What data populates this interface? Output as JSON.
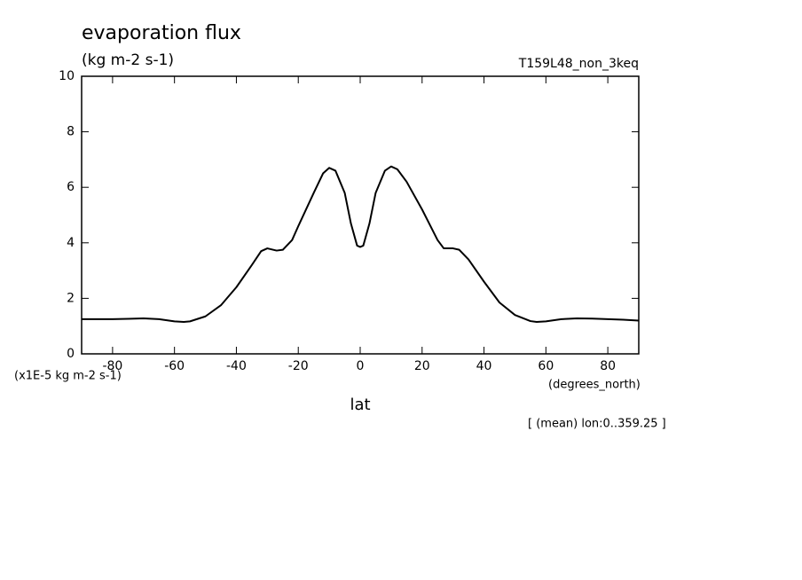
{
  "chart_data": {
    "type": "line",
    "title": "evaporation flux",
    "subtitle": "(kg m-2 s-1)",
    "run_label": "T159L48_non_3keq",
    "y_unit_label": "(x1E-5 kg m-2 s-1)",
    "x_unit_label": "(degrees_north)",
    "x_label": "lat",
    "note": "[ (mean) lon:0..359.25 ]",
    "x": [
      -90,
      -85,
      -80,
      -75,
      -70,
      -65,
      -60,
      -57,
      -55,
      -50,
      -45,
      -40,
      -35,
      -32,
      -30,
      -27,
      -25,
      -22,
      -20,
      -15,
      -12,
      -10,
      -8,
      -5,
      -3,
      -1,
      0,
      1,
      3,
      5,
      8,
      10,
      12,
      15,
      20,
      25,
      27,
      30,
      32,
      35,
      40,
      45,
      50,
      55,
      57,
      60,
      65,
      70,
      75,
      80,
      85,
      90
    ],
    "series": [
      {
        "color": "#000000",
        "values": [
          1.25,
          1.25,
          1.25,
          1.26,
          1.28,
          1.25,
          1.17,
          1.15,
          1.17,
          1.35,
          1.75,
          2.4,
          3.2,
          3.7,
          3.8,
          3.72,
          3.75,
          4.1,
          4.6,
          5.8,
          6.5,
          6.7,
          6.6,
          5.8,
          4.7,
          3.9,
          3.85,
          3.9,
          4.7,
          5.8,
          6.6,
          6.75,
          6.65,
          6.2,
          5.2,
          4.1,
          3.8,
          3.8,
          3.75,
          3.4,
          2.6,
          1.85,
          1.4,
          1.18,
          1.15,
          1.17,
          1.25,
          1.28,
          1.27,
          1.25,
          1.23,
          1.2
        ]
      }
    ],
    "xlim": [
      -90,
      90
    ],
    "ylim": [
      0,
      10
    ],
    "xticks": [
      -80,
      -60,
      -40,
      -20,
      0,
      20,
      40,
      60,
      80
    ],
    "yticks": [
      0,
      2,
      4,
      6,
      8,
      10
    ]
  }
}
